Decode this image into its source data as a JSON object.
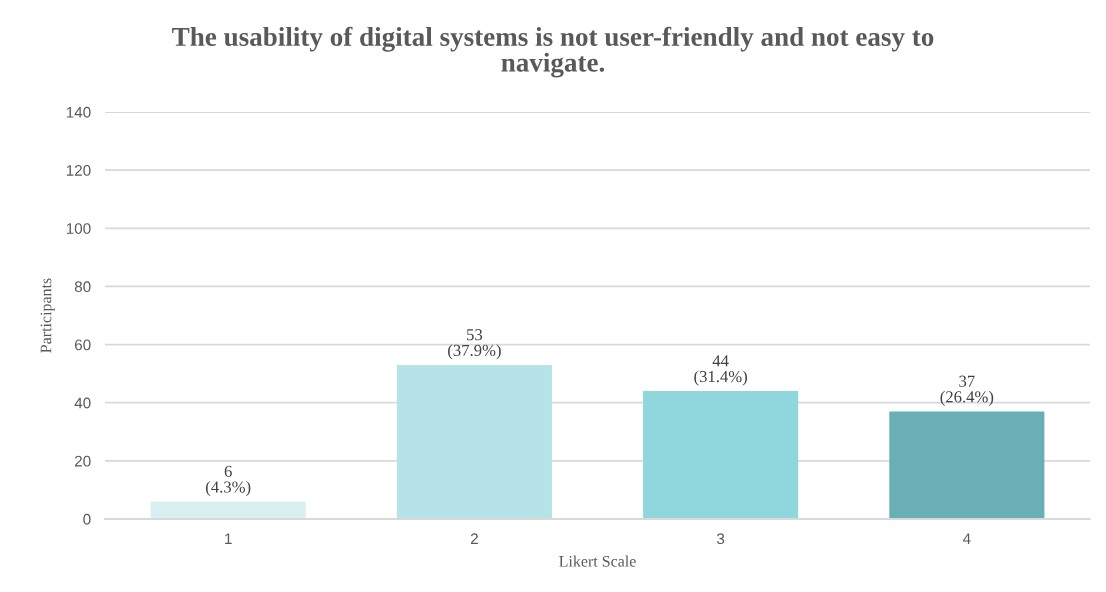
{
  "chart_data": {
    "type": "bar",
    "title": "The usability of digital systems is not user-friendly and not easy to navigate.",
    "xlabel": "Likert Scale",
    "ylabel": "Participants",
    "categories": [
      "1",
      "2",
      "3",
      "4"
    ],
    "values": [
      6,
      53,
      44,
      37
    ],
    "colors": [
      "#d9f0f2",
      "#b5e3e8",
      "#8fd6dd",
      "#6aafb6"
    ],
    "value_labels": [
      "6\n(4.3%)",
      "53\n(37.9%)",
      "44\n(31.4%)",
      "37\n(26.4%)"
    ],
    "ylim": [
      0,
      140
    ],
    "yticks": [
      0,
      20,
      40,
      60,
      80,
      100,
      120,
      140
    ],
    "grid": "y"
  }
}
